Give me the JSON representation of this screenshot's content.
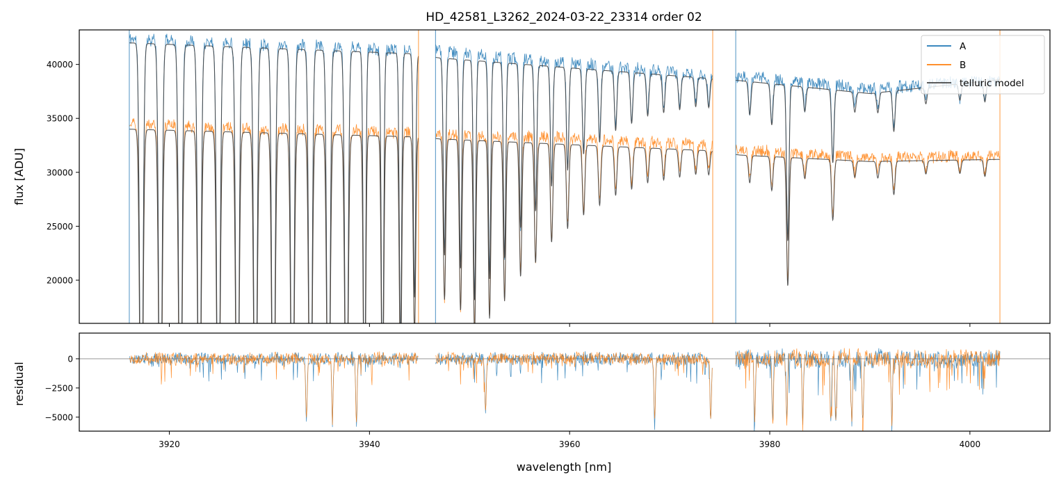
{
  "chart_data": {
    "type": "line",
    "title": "HD_42581_L3262_2024-03-22_23314  order 02",
    "xlabel": "wavelength [nm]",
    "xlim": [
      3911,
      4008
    ],
    "xticks": [
      3920,
      3940,
      3960,
      3980,
      4000
    ],
    "series_colors": {
      "A": "#1f77b4",
      "B": "#ff7f0e",
      "telluric model": "#444444"
    },
    "legend": {
      "position": "top-right",
      "entries": [
        "A",
        "B",
        "telluric model"
      ]
    },
    "gap_ranges": [
      [
        3944.9,
        3946.6
      ],
      [
        3974.3,
        3976.6
      ]
    ],
    "data_range": [
      3916,
      4003
    ],
    "flux_panel": {
      "ylabel": "flux [ADU]",
      "ylim": [
        16000,
        43200
      ],
      "yticks": [
        20000,
        25000,
        30000,
        35000,
        40000
      ],
      "series": [
        {
          "name": "A",
          "continuum": [
            [
              3916,
              42400
            ],
            [
              3930,
              41900
            ],
            [
              3944,
              41300
            ],
            [
              3947,
              41200
            ],
            [
              3960,
              40100
            ],
            [
              3974,
              39000
            ],
            [
              3977,
              38900
            ],
            [
              3990,
              37800
            ],
            [
              4003,
              38500
            ]
          ],
          "noise": 700
        },
        {
          "name": "B",
          "continuum": [
            [
              3916,
              34500
            ],
            [
              3930,
              34000
            ],
            [
              3944,
              33700
            ],
            [
              3947,
              33500
            ],
            [
              3960,
              33200
            ],
            [
              3974,
              32500
            ],
            [
              3977,
              32100
            ],
            [
              3990,
              31400
            ],
            [
              4003,
              31500
            ]
          ],
          "noise": 650
        },
        {
          "name": "telluric model",
          "continuum_A": [
            [
              3916,
              42000
            ],
            [
              3944,
              41000
            ],
            [
              3947,
              40600
            ],
            [
              3974,
              38700
            ],
            [
              3977,
              38500
            ],
            [
              3990,
              37300
            ],
            [
              4003,
              38600
            ]
          ],
          "continuum_B": [
            [
              3916,
              34000
            ],
            [
              3944,
              33300
            ],
            [
              3947,
              33100
            ],
            [
              3974,
              32000
            ],
            [
              3977,
              31600
            ],
            [
              3990,
              31000
            ],
            [
              4003,
              31200
            ]
          ]
        }
      ],
      "absorption_lines": [
        {
          "x": 3917.2,
          "depth": 1.0
        },
        {
          "x": 3919.1,
          "depth": 1.0
        },
        {
          "x": 3921.1,
          "depth": 1.0
        },
        {
          "x": 3923.0,
          "depth": 1.0
        },
        {
          "x": 3924.9,
          "depth": 1.0
        },
        {
          "x": 3926.8,
          "depth": 1.0
        },
        {
          "x": 3928.6,
          "depth": 1.0
        },
        {
          "x": 3930.4,
          "depth": 1.0
        },
        {
          "x": 3932.3,
          "depth": 1.0
        },
        {
          "x": 3934.1,
          "depth": 1.0
        },
        {
          "x": 3935.9,
          "depth": 0.98
        },
        {
          "x": 3937.7,
          "depth": 0.93
        },
        {
          "x": 3939.5,
          "depth": 0.85
        },
        {
          "x": 3941.3,
          "depth": 0.78
        },
        {
          "x": 3943.1,
          "depth": 0.66
        },
        {
          "x": 3944.5,
          "depth": 0.55
        },
        {
          "x": 3947.5,
          "depth": 0.45
        },
        {
          "x": 3949.1,
          "depth": 0.48
        },
        {
          "x": 3950.5,
          "depth": 0.55
        },
        {
          "x": 3952.0,
          "depth": 0.5
        },
        {
          "x": 3953.5,
          "depth": 0.45
        },
        {
          "x": 3955.1,
          "depth": 0.38
        },
        {
          "x": 3956.6,
          "depth": 0.34
        },
        {
          "x": 3958.2,
          "depth": 0.28
        },
        {
          "x": 3959.8,
          "depth": 0.24
        },
        {
          "x": 3961.4,
          "depth": 0.2
        },
        {
          "x": 3963.0,
          "depth": 0.17
        },
        {
          "x": 3964.6,
          "depth": 0.14
        },
        {
          "x": 3966.2,
          "depth": 0.12
        },
        {
          "x": 3967.8,
          "depth": 0.1
        },
        {
          "x": 3969.4,
          "depth": 0.09
        },
        {
          "x": 3971.0,
          "depth": 0.08
        },
        {
          "x": 3972.6,
          "depth": 0.07
        },
        {
          "x": 3973.9,
          "depth": 0.07
        },
        {
          "x": 3978.0,
          "depth": 0.08
        },
        {
          "x": 3980.2,
          "depth": 0.1
        },
        {
          "x": 3981.8,
          "depth": 0.38
        },
        {
          "x": 3983.5,
          "depth": 0.06
        },
        {
          "x": 3986.3,
          "depth": 0.18
        },
        {
          "x": 3988.5,
          "depth": 0.05
        },
        {
          "x": 3990.8,
          "depth": 0.05
        },
        {
          "x": 3992.4,
          "depth": 0.1
        },
        {
          "x": 3995.6,
          "depth": 0.04
        },
        {
          "x": 3999.0,
          "depth": 0.04
        },
        {
          "x": 4001.5,
          "depth": 0.05
        }
      ]
    },
    "residual_panel": {
      "ylabel": "residual",
      "ylim": [
        -6200,
        2200
      ],
      "yticks": [
        -5000,
        -2500,
        0
      ],
      "zero_line": true,
      "noise": 650,
      "deep_dips": [
        {
          "x": 3933.7,
          "value": -6200
        },
        {
          "x": 3936.3,
          "value": -6200
        },
        {
          "x": 3938.7,
          "value": -6200
        },
        {
          "x": 3951.6,
          "value": -5300
        },
        {
          "x": 3968.5,
          "value": -6200
        },
        {
          "x": 3974.1,
          "value": -6200
        },
        {
          "x": 3978.5,
          "value": -6200
        },
        {
          "x": 3980.3,
          "value": -6200
        },
        {
          "x": 3981.7,
          "value": -6200
        },
        {
          "x": 3983.3,
          "value": -6200
        },
        {
          "x": 3986.1,
          "value": -6200
        },
        {
          "x": 3986.6,
          "value": -6200
        },
        {
          "x": 3988.2,
          "value": -6200
        },
        {
          "x": 3989.3,
          "value": -6200
        },
        {
          "x": 3992.2,
          "value": -6200
        }
      ]
    }
  }
}
